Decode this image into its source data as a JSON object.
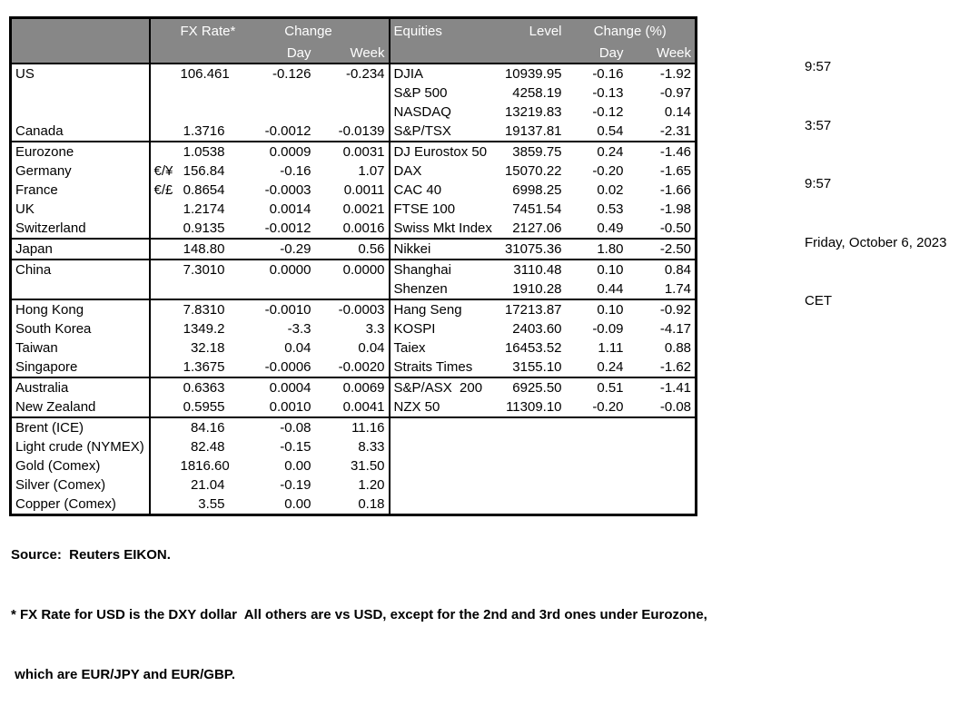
{
  "meta": {
    "times": [
      "9:57",
      "3:57",
      "9:57"
    ],
    "date": "Friday, October 6, 2023",
    "timezone": "CET"
  },
  "colors": {
    "header_bg": "#878787",
    "header_text": "#ffffff",
    "border": "#000000"
  },
  "table": {
    "fx_header": {
      "rate": "FX Rate*",
      "change": "Change",
      "day": "Day",
      "week": "Week"
    },
    "eq_header": {
      "title": "Equities",
      "level": "Level",
      "change": "Change (%)",
      "day": "Day",
      "week": "Week"
    },
    "rows": [
      {
        "label": "US",
        "sym": "",
        "rate": "106.461",
        "day": "-0.126",
        "week": "-0.234",
        "eq": "DJIA",
        "level": "10939.95",
        "eqDay": "-0.16",
        "eqWeek": "-1.92",
        "indent": false,
        "sep": false
      },
      {
        "label": "",
        "sym": "",
        "rate": "",
        "day": "",
        "week": "",
        "eq": "S&P 500",
        "level": "4258.19",
        "eqDay": "-0.13",
        "eqWeek": "-0.97",
        "indent": false,
        "sep": false
      },
      {
        "label": "",
        "sym": "",
        "rate": "",
        "day": "",
        "week": "",
        "eq": "NASDAQ",
        "level": "13219.83",
        "eqDay": "-0.12",
        "eqWeek": "0.14",
        "indent": false,
        "sep": false
      },
      {
        "label": "Canada",
        "sym": "",
        "rate": "1.3716",
        "day": "-0.0012",
        "week": "-0.0139",
        "eq": "S&P/TSX",
        "level": "19137.81",
        "eqDay": "0.54",
        "eqWeek": "-2.31",
        "indent": false,
        "sep": false
      },
      {
        "label": "Eurozone",
        "sym": "",
        "rate": "1.0538",
        "day": "0.0009",
        "week": "0.0031",
        "eq": "DJ Eurostox 50",
        "level": "3859.75",
        "eqDay": "0.24",
        "eqWeek": "-1.46",
        "indent": false,
        "sep": true
      },
      {
        "label": "Germany",
        "sym": "€/¥",
        "rate": "156.84",
        "day": "-0.16",
        "week": "1.07",
        "eq": "DAX",
        "level": "15070.22",
        "eqDay": "-0.20",
        "eqWeek": "-1.65",
        "indent": true,
        "sep": false
      },
      {
        "label": "France",
        "sym": "€/£",
        "rate": "0.8654",
        "day": "-0.0003",
        "week": "0.0011",
        "eq": "CAC 40",
        "level": "6998.25",
        "eqDay": "0.02",
        "eqWeek": "-1.66",
        "indent": true,
        "sep": false
      },
      {
        "label": "UK",
        "sym": "",
        "rate": "1.2174",
        "day": "0.0014",
        "week": "0.0021",
        "eq": "FTSE 100",
        "level": "7451.54",
        "eqDay": "0.53",
        "eqWeek": "-1.98",
        "indent": false,
        "sep": false
      },
      {
        "label": "Switzerland",
        "sym": "",
        "rate": "0.9135",
        "day": "-0.0012",
        "week": "0.0016",
        "eq": "Swiss Mkt Index",
        "level": "2127.06",
        "eqDay": "0.49",
        "eqWeek": "-0.50",
        "indent": false,
        "sep": false
      },
      {
        "label": "Japan",
        "sym": "",
        "rate": "148.80",
        "day": "-0.29",
        "week": "0.56",
        "eq": "Nikkei",
        "level": "31075.36",
        "eqDay": "1.80",
        "eqWeek": "-2.50",
        "indent": false,
        "sep": true
      },
      {
        "label": "China",
        "sym": "",
        "rate": "7.3010",
        "day": "0.0000",
        "week": "0.0000",
        "eq": "Shanghai",
        "level": "3110.48",
        "eqDay": "0.10",
        "eqWeek": "0.84",
        "indent": false,
        "sep": true
      },
      {
        "label": "",
        "sym": "",
        "rate": "",
        "day": "",
        "week": "",
        "eq": "Shenzen",
        "level": "1910.28",
        "eqDay": "0.44",
        "eqWeek": "1.74",
        "indent": false,
        "sep": false
      },
      {
        "label": "Hong Kong",
        "sym": "",
        "rate": "7.8310",
        "day": "-0.0010",
        "week": "-0.0003",
        "eq": "Hang Seng",
        "level": "17213.87",
        "eqDay": "0.10",
        "eqWeek": "-0.92",
        "indent": false,
        "sep": true
      },
      {
        "label": "South Korea",
        "sym": "",
        "rate": "1349.2",
        "day": "-3.3",
        "week": "3.3",
        "eq": "KOSPI",
        "level": "2403.60",
        "eqDay": "-0.09",
        "eqWeek": "-4.17",
        "indent": false,
        "sep": false
      },
      {
        "label": "Taiwan",
        "sym": "",
        "rate": "32.18",
        "day": "0.04",
        "week": "0.04",
        "eq": "Taiex",
        "level": "16453.52",
        "eqDay": "1.11",
        "eqWeek": "0.88",
        "indent": false,
        "sep": false
      },
      {
        "label": "Singapore",
        "sym": "",
        "rate": "1.3675",
        "day": "-0.0006",
        "week": "-0.0020",
        "eq": "Straits Times",
        "level": "3155.10",
        "eqDay": "0.24",
        "eqWeek": "-1.62",
        "indent": false,
        "sep": false
      },
      {
        "label": "Australia",
        "sym": "",
        "rate": "0.6363",
        "day": "0.0004",
        "week": "0.0069",
        "eq": "S&P/ASX  200",
        "level": "6925.50",
        "eqDay": "0.51",
        "eqWeek": "-1.41",
        "indent": false,
        "sep": true
      },
      {
        "label": "New Zealand",
        "sym": "",
        "rate": "0.5955",
        "day": "0.0010",
        "week": "0.0041",
        "eq": "NZX 50",
        "level": "11309.10",
        "eqDay": "-0.20",
        "eqWeek": "-0.08",
        "indent": false,
        "sep": false
      },
      {
        "label": "Brent (ICE)",
        "sym": "",
        "rate": "84.16",
        "day": "-0.08",
        "week": "11.16",
        "eq": "",
        "level": "",
        "eqDay": "",
        "eqWeek": "",
        "indent": false,
        "sep": true
      },
      {
        "label": "Light crude (NYMEX)",
        "sym": "",
        "rate": "82.48",
        "day": "-0.15",
        "week": "8.33",
        "eq": "",
        "level": "",
        "eqDay": "",
        "eqWeek": "",
        "indent": false,
        "sep": false
      },
      {
        "label": "Gold (Comex)",
        "sym": "",
        "rate": "1816.60",
        "day": "0.00",
        "week": "31.50",
        "eq": "",
        "level": "",
        "eqDay": "",
        "eqWeek": "",
        "indent": false,
        "sep": false
      },
      {
        "label": "Silver (Comex)",
        "sym": "",
        "rate": "21.04",
        "day": "-0.19",
        "week": "1.20",
        "eq": "",
        "level": "",
        "eqDay": "",
        "eqWeek": "",
        "indent": false,
        "sep": false
      },
      {
        "label": "Copper (Comex)",
        "sym": "",
        "rate": "3.55",
        "day": "0.00",
        "week": "0.18",
        "eq": "",
        "level": "",
        "eqDay": "",
        "eqWeek": "",
        "indent": false,
        "sep": false
      }
    ]
  },
  "footer": {
    "source": "Source:  Reuters EIKON.",
    "note1": "* FX Rate for USD is the DXY dollar  All others are vs USD, except for the 2nd and 3rd ones under Eurozone,",
    "note2": " which are EUR/JPY and EUR/GBP."
  }
}
